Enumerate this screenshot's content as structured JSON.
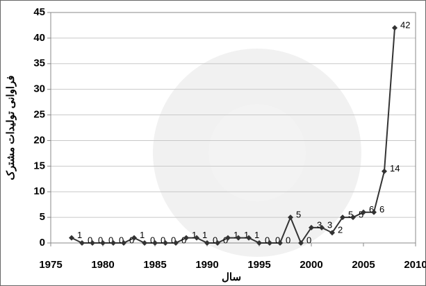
{
  "chart_data": {
    "type": "line",
    "x": [
      1977,
      1978,
      1979,
      1980,
      1981,
      1982,
      1983,
      1984,
      1985,
      1986,
      1987,
      1988,
      1989,
      1990,
      1991,
      1992,
      1993,
      1994,
      1995,
      1996,
      1997,
      1998,
      1999,
      2000,
      2001,
      2002,
      2003,
      2004,
      2005,
      2006,
      2007,
      2008
    ],
    "values": [
      1,
      0,
      0,
      0,
      0,
      0,
      1,
      0,
      0,
      0,
      0,
      1,
      1,
      0,
      0,
      1,
      1,
      1,
      0,
      0,
      0,
      5,
      0,
      3,
      3,
      2,
      5,
      5,
      6,
      6,
      14,
      42
    ],
    "color": "#333333",
    "xlabel": "سال",
    "ylabel": "فراوانی تولیدات مشترک",
    "xlim": [
      1975,
      2010
    ],
    "xticks": [
      1975,
      1980,
      1985,
      1990,
      1995,
      2000,
      2005,
      2010
    ],
    "ylim": [
      0,
      45
    ],
    "yticks": [
      0,
      5,
      10,
      15,
      20,
      25,
      30,
      35,
      40,
      45
    ],
    "grid": true
  }
}
